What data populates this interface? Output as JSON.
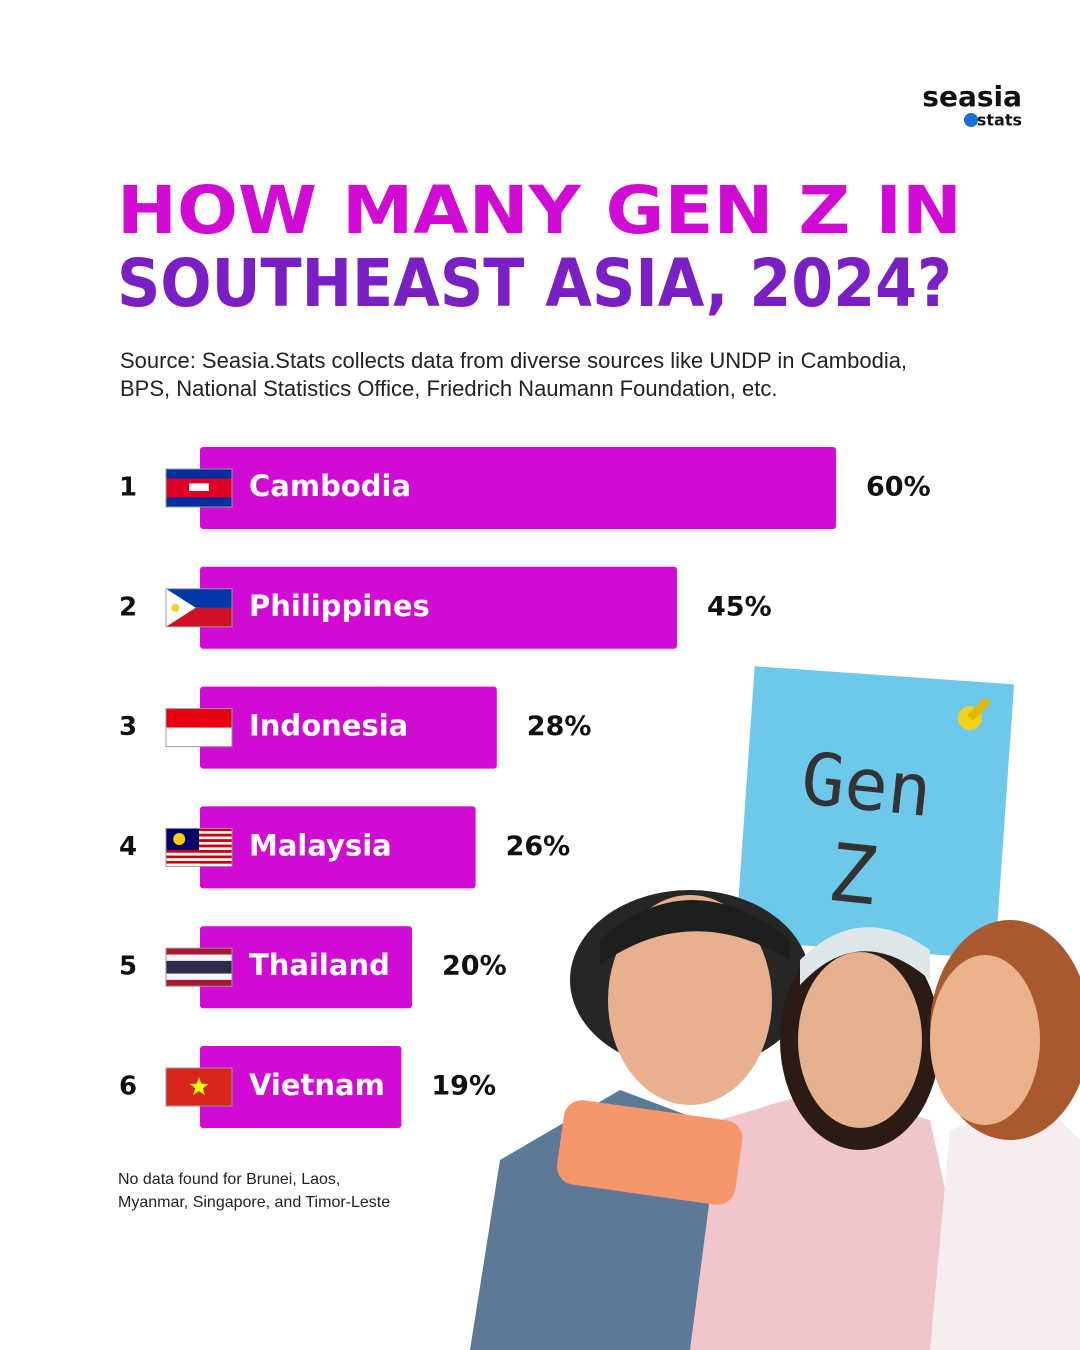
{
  "logo": {
    "name": "seasia",
    "sub": "stats"
  },
  "chart_data": {
    "type": "bar",
    "title": [
      "HOW MANY GEN Z IN",
      "SOUTHEAST ASIA, 2024?"
    ],
    "title_colors": [
      "#d10ad4",
      "#7a1fc4"
    ],
    "subtitle": [
      "Source: Seasia.Stats collects data from diverse sources like UNDP in Cambodia,",
      "BPS, National Statistics Office, Friedrich Naumann Foundation, etc."
    ],
    "ranks": [
      "1",
      "2",
      "3",
      "4",
      "5",
      "6"
    ],
    "categories": [
      "Cambodia",
      "Philippines",
      "Indonesia",
      "Malaysia",
      "Thailand",
      "Vietnam"
    ],
    "values": [
      60,
      45,
      28,
      26,
      20,
      19
    ],
    "value_labels": [
      "60%",
      "45%",
      "28%",
      "26%",
      "20%",
      "19%"
    ],
    "color": "#d10ad4",
    "annotation": [
      "No data found for Brunei, Laos,",
      "Myanmar, Singapore, and Timor-Leste"
    ]
  },
  "photo_note": [
    "Gen",
    "Z"
  ]
}
